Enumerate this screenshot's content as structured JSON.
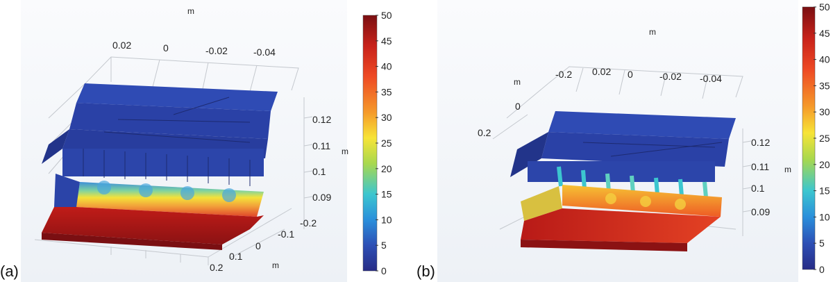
{
  "panels": [
    {
      "label": "(a)",
      "unit_top": "m",
      "x_ticks": [
        "0.02",
        "0",
        "-0.02",
        "-0.04"
      ],
      "z_ticks": [
        "0.12",
        "0.11",
        "0.1",
        "0.09"
      ],
      "z_unit": "m",
      "y_ticks": [
        "-0.2",
        "-0.1",
        "0",
        "0.1",
        "0.2"
      ],
      "y_unit": "m"
    },
    {
      "label": "(b)",
      "unit_top": "m",
      "x_ticks": [
        "-0.2",
        "0.02",
        "0",
        "-0.02",
        "-0.04"
      ],
      "left_unit": "m",
      "left_ticks": [
        "0",
        "0.2"
      ],
      "z_ticks": [
        "0.12",
        "0.11",
        "0.1",
        "0.09"
      ],
      "z_unit": "m"
    }
  ],
  "colorbar": {
    "ticks": [
      "50",
      "45",
      "40",
      "35",
      "30",
      "25",
      "20",
      "15",
      "10",
      "5",
      "0"
    ],
    "min": 0,
    "max": 50,
    "colors": [
      "#7a0f12",
      "#c8221a",
      "#ee4a24",
      "#f59a2a",
      "#f7e437",
      "#a8d84e",
      "#3cc6cf",
      "#2a8fdb",
      "#2d4fb5",
      "#272c86"
    ]
  }
}
